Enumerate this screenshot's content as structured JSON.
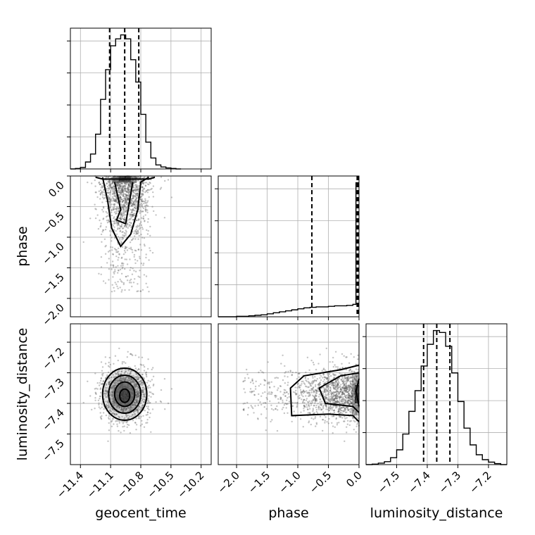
{
  "chart_data": {
    "type": "corner",
    "parameters": [
      {
        "label": "geocent_time",
        "range": [
          -11.5,
          -10.1
        ],
        "ticks": [
          -11.4,
          -11.1,
          -10.8,
          -10.5,
          -10.2
        ],
        "tick_labels": [
          "−11.4",
          "−11.1",
          "−10.8",
          "−10.5",
          "−10.2"
        ],
        "quantiles": [
          -11.11,
          -10.96,
          -10.82
        ]
      },
      {
        "label": "phase",
        "range": [
          -2.3,
          0.0
        ],
        "ticks": [
          -2.0,
          -1.5,
          -1.0,
          -0.5,
          0.0
        ],
        "tick_labels": [
          "−2.0",
          "−1.5",
          "−1.0",
          "−0.5",
          "0.0"
        ],
        "quantiles": [
          -0.77,
          -0.03,
          -0.01
        ]
      },
      {
        "label": "luminosity_distance",
        "range": [
          -7.6,
          -7.14
        ],
        "ticks": [
          -7.5,
          -7.4,
          -7.3,
          -7.2
        ],
        "tick_labels": [
          "−7.5",
          "−7.4",
          "−7.3",
          "−7.2"
        ],
        "quantiles": [
          -7.412,
          -7.369,
          -7.326
        ]
      }
    ],
    "histograms": [
      {
        "param": "geocent_time",
        "bins": [
          -11.5,
          -11.45,
          -11.4,
          -11.35,
          -11.3,
          -11.25,
          -11.2,
          -11.15,
          -11.1,
          -11.05,
          -11.0,
          -10.95,
          -10.9,
          -10.85,
          -10.8,
          -10.75,
          -10.7,
          -10.65,
          -10.6,
          -10.55,
          -10.5,
          -10.45,
          -10.4
        ],
        "counts": [
          0,
          1,
          3,
          14,
          30,
          70,
          140,
          200,
          248,
          262,
          270,
          262,
          220,
          175,
          110,
          54,
          22,
          8,
          4,
          2,
          1,
          0
        ]
      },
      {
        "param": "phase",
        "bins": [
          -2.3,
          -2.2,
          -2.1,
          -2.0,
          -1.9,
          -1.8,
          -1.7,
          -1.6,
          -1.5,
          -1.4,
          -1.3,
          -1.2,
          -1.1,
          -1.0,
          -0.9,
          -0.8,
          -0.7,
          -0.6,
          -0.5,
          -0.4,
          -0.3,
          -0.2,
          -0.1,
          -0.05,
          0.0
        ],
        "counts": [
          0,
          0,
          0,
          1,
          1,
          2,
          3,
          4,
          6,
          8,
          10,
          12,
          14,
          16,
          18,
          19,
          20,
          20,
          21,
          22,
          22,
          23,
          25,
          270
        ]
      },
      {
        "param": "luminosity_distance",
        "bins": [
          -7.6,
          -7.58,
          -7.56,
          -7.54,
          -7.52,
          -7.5,
          -7.48,
          -7.46,
          -7.44,
          -7.42,
          -7.4,
          -7.38,
          -7.36,
          -7.34,
          -7.32,
          -7.3,
          -7.28,
          -7.26,
          -7.24,
          -7.22,
          -7.2,
          -7.18,
          -7.16,
          -7.14
        ],
        "counts": [
          0,
          1,
          3,
          6,
          14,
          30,
          62,
          108,
          150,
          200,
          244,
          272,
          268,
          240,
          186,
          128,
          74,
          40,
          20,
          10,
          5,
          2,
          0
        ]
      }
    ],
    "contour_levels": [
      0.5,
      1.0,
      1.5,
      2.0
    ],
    "grid": true
  }
}
